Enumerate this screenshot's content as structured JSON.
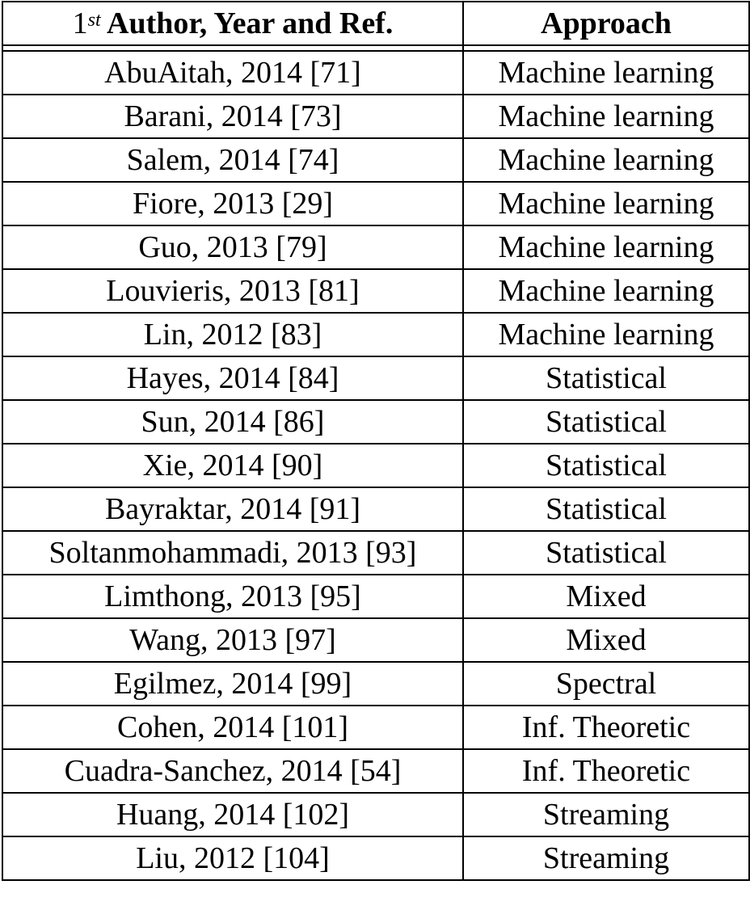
{
  "table": {
    "header": {
      "col1_prefix": "1",
      "col1_sup": "st",
      "col1_rest": " Author, Year and Ref.",
      "col2": "Approach"
    },
    "rows": [
      {
        "author": "AbuAitah, 2014 [71]",
        "approach": "Machine learning"
      },
      {
        "author": "Barani, 2014 [73]",
        "approach": "Machine learning"
      },
      {
        "author": "Salem, 2014 [74]",
        "approach": "Machine learning"
      },
      {
        "author": "Fiore, 2013 [29]",
        "approach": "Machine learning"
      },
      {
        "author": "Guo, 2013 [79]",
        "approach": "Machine learning"
      },
      {
        "author": "Louvieris, 2013 [81]",
        "approach": "Machine learning"
      },
      {
        "author": "Lin, 2012 [83]",
        "approach": "Machine learning"
      },
      {
        "author": "Hayes, 2014 [84]",
        "approach": "Statistical"
      },
      {
        "author": "Sun, 2014 [86]",
        "approach": "Statistical"
      },
      {
        "author": "Xie, 2014 [90]",
        "approach": "Statistical"
      },
      {
        "author": "Bayraktar, 2014 [91]",
        "approach": "Statistical"
      },
      {
        "author": "Soltanmohammadi, 2013 [93]",
        "approach": "Statistical"
      },
      {
        "author": "Limthong, 2013 [95]",
        "approach": "Mixed"
      },
      {
        "author": "Wang, 2013 [97]",
        "approach": "Mixed"
      },
      {
        "author": "Egilmez, 2014 [99]",
        "approach": "Spectral"
      },
      {
        "author": "Cohen, 2014 [101]",
        "approach": "Inf. Theoretic"
      },
      {
        "author": "Cuadra-Sanchez, 2014 [54]",
        "approach": "Inf. Theoretic"
      },
      {
        "author": "Huang, 2014 [102]",
        "approach": "Streaming"
      },
      {
        "author": "Liu, 2012 [104]",
        "approach": "Streaming"
      }
    ]
  }
}
